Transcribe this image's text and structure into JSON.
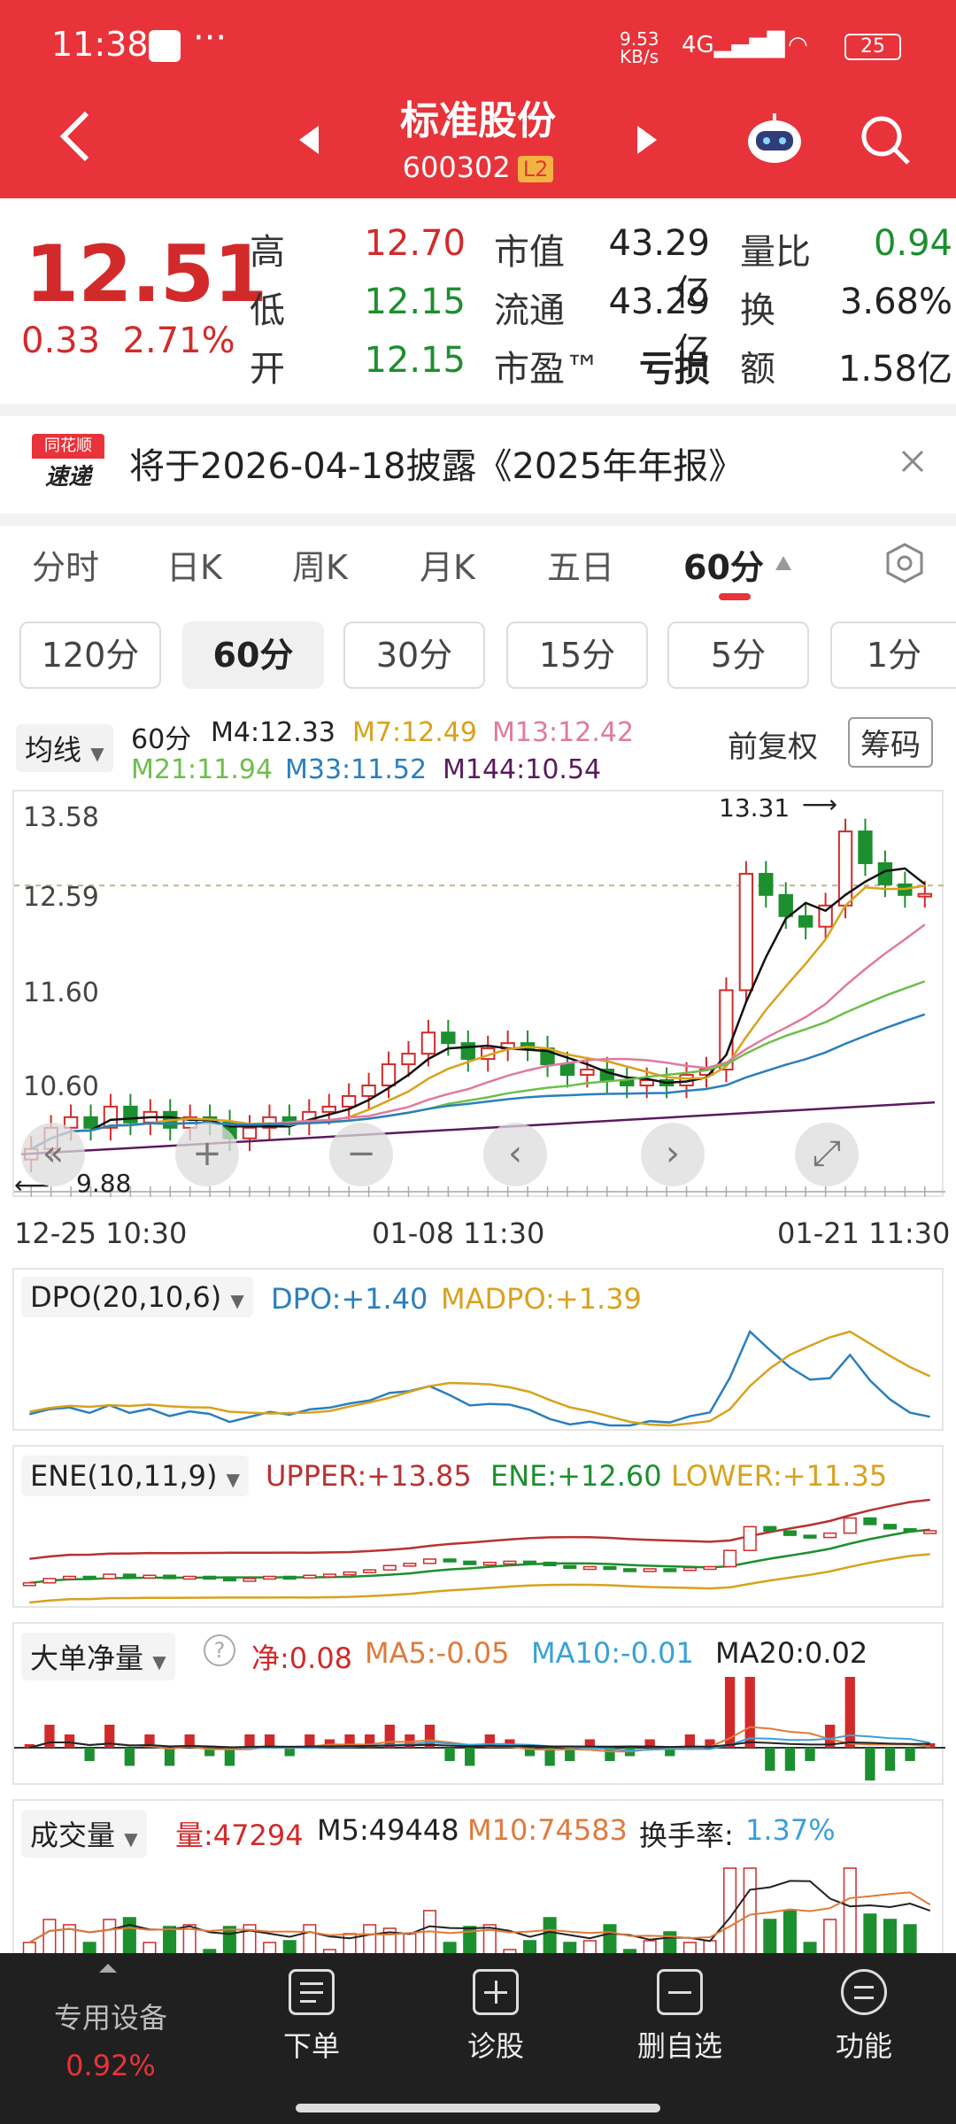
{
  "status_bar": {
    "time": "11:38",
    "net_speed": "9.53 KB/s",
    "battery": "25"
  },
  "header": {
    "title": "标准股份",
    "code": "600302",
    "level": "L2"
  },
  "quote": {
    "price": "12.51",
    "change": "0.33",
    "change_pct": "2.71%",
    "high_label": "高",
    "high": "12.70",
    "low_label": "低",
    "low": "12.15",
    "open_label": "开",
    "open": "12.15",
    "mktcap_label": "市值",
    "mktcap": "43.29亿",
    "float_label": "流通",
    "float": "43.29亿",
    "pe_label": "市盈™",
    "pe": "亏损",
    "vol_ratio_label": "量比",
    "vol_ratio": "0.94",
    "turnover_label": "换",
    "turnover": "3.68%",
    "amount_label": "额",
    "amount": "1.58亿"
  },
  "notice": {
    "logo_top": "同花顺",
    "logo_bottom": "速递",
    "text": "将于2026-04-18披露《2025年年报》"
  },
  "tabs": [
    "分时",
    "日K",
    "周K",
    "月K",
    "五日",
    "60分"
  ],
  "periods": [
    "120分",
    "60分",
    "30分",
    "15分",
    "5分",
    "1分"
  ],
  "ma_bar": {
    "selector": "均线",
    "period": "60分",
    "m4": "M4:12.33",
    "m7": "M7:12.49",
    "m13": "M13:12.42",
    "m21": "M21:11.94",
    "m33": "M33:11.52",
    "m144": "M144:10.54",
    "adjust": "前复权",
    "chips": "筹码"
  },
  "kline": {
    "y_ticks": [
      "13.58",
      "12.59",
      "11.60",
      "10.60"
    ],
    "high_mark": "13.31",
    "low_mark": "9.88",
    "x_ticks": [
      "12-25 10:30",
      "01-08 11:30",
      "01-21 11:30"
    ]
  },
  "dpo": {
    "selector": "DPO(20,10,6)",
    "dpo": "DPO:+1.40",
    "madpo": "MADPO:+1.39"
  },
  "ene": {
    "selector": "ENE(10,11,9)",
    "upper": "UPPER:+13.85",
    "ene": "ENE:+12.60",
    "lower": "LOWER:+11.35"
  },
  "big_order": {
    "selector": "大单净量",
    "net": "净:0.08",
    "ma5": "MA5:-0.05",
    "ma10": "MA10:-0.01",
    "ma20": "MA20:0.02"
  },
  "volume": {
    "selector": "成交量",
    "vol": "量:47294",
    "m5": "M5:49448",
    "m10": "M10:74583",
    "turnover_label": "换手率:",
    "turnover": "1.37%"
  },
  "bottom_bar": {
    "device": "专用设备",
    "device_pct": "0.92%",
    "order": "下单",
    "diagnose": "诊股",
    "delete_fav": "删自选",
    "function": "功能"
  },
  "colors": {
    "header": "#e8333a",
    "up": "#d22a2a",
    "down": "#1c8f2e"
  },
  "chart_data": {
    "type": "candlestick",
    "period": "60分",
    "x_ticks": [
      "12-25 10:30",
      "01-08 11:30",
      "01-21 11:30"
    ],
    "y_ticks": [
      13.58,
      12.59,
      11.6,
      10.6
    ],
    "ylim": [
      9.88,
      13.31
    ],
    "close_approx": [
      10.1,
      10.3,
      10.4,
      10.3,
      10.5,
      10.35,
      10.45,
      10.3,
      10.4,
      10.35,
      10.2,
      10.3,
      10.4,
      10.35,
      10.45,
      10.5,
      10.6,
      10.7,
      10.9,
      11.0,
      11.2,
      11.1,
      10.95,
      11.05,
      11.1,
      11.05,
      10.9,
      10.8,
      10.85,
      10.75,
      10.7,
      10.75,
      10.7,
      10.8,
      10.85,
      11.6,
      12.7,
      12.5,
      12.3,
      12.2,
      12.4,
      13.1,
      12.8,
      12.6,
      12.5,
      12.51
    ]
  }
}
